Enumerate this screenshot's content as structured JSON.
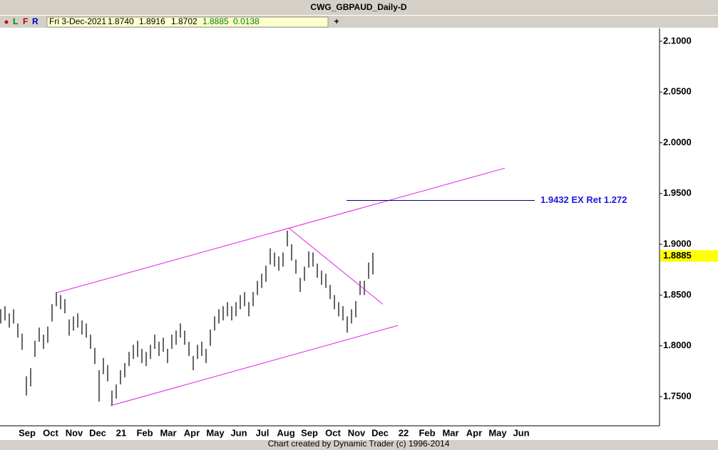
{
  "toolbar": [
    "L",
    "F",
    "R"
  ],
  "info": [
    "Fri 3-Dec-2021",
    "1.8740",
    "1.8916",
    "1.8702",
    "1.8885",
    "0.0138"
  ],
  "footer": "Chart created by Dynamic Trader  (c) 1996-2014",
  "chart_data": {
    "type": "range_bar",
    "title": "CWG_GBPAUD_Daily-D",
    "color": "#000000",
    "high": [
      1.836,
      1.839,
      1.832,
      1.836,
      1.822,
      1.812,
      1.77,
      1.778,
      1.805,
      1.818,
      1.811,
      1.819,
      1.841,
      1.853,
      1.85,
      1.846,
      1.826,
      1.829,
      1.832,
      1.825,
      1.822,
      1.811,
      1.798,
      1.776,
      1.788,
      1.781,
      1.756,
      1.762,
      1.776,
      1.783,
      1.794,
      1.801,
      1.805,
      1.797,
      1.794,
      1.801,
      1.811,
      1.804,
      1.808,
      1.797,
      1.811,
      1.815,
      1.822,
      1.815,
      1.804,
      1.79,
      1.801,
      1.804,
      1.797,
      1.816,
      1.829,
      1.836,
      1.839,
      1.843,
      1.839,
      1.843,
      1.85,
      1.853,
      1.843,
      1.853,
      1.864,
      1.871,
      1.879,
      1.896,
      1.892,
      1.888,
      1.892,
      1.9135,
      1.9,
      1.885,
      1.867,
      1.878,
      1.893,
      1.892,
      1.881,
      1.874,
      1.871,
      1.86,
      1.85,
      1.843,
      1.839,
      1.829,
      1.836,
      1.844,
      1.864,
      1.864,
      1.882,
      1.8916
    ],
    "low": [
      1.822,
      1.825,
      1.818,
      1.822,
      1.808,
      1.796,
      1.751,
      1.76,
      1.789,
      1.804,
      1.797,
      1.803,
      1.824,
      1.839,
      1.836,
      1.832,
      1.81,
      1.815,
      1.818,
      1.811,
      1.808,
      1.797,
      1.782,
      1.745,
      1.772,
      1.765,
      1.741,
      1.748,
      1.762,
      1.769,
      1.78,
      1.787,
      1.789,
      1.783,
      1.78,
      1.787,
      1.797,
      1.79,
      1.794,
      1.783,
      1.797,
      1.801,
      1.808,
      1.801,
      1.79,
      1.776,
      1.787,
      1.79,
      1.783,
      1.8,
      1.815,
      1.822,
      1.825,
      1.829,
      1.825,
      1.829,
      1.836,
      1.839,
      1.829,
      1.839,
      1.85,
      1.857,
      1.863,
      1.88,
      1.878,
      1.874,
      1.878,
      1.898,
      1.884,
      1.871,
      1.853,
      1.864,
      1.877,
      1.878,
      1.867,
      1.86,
      1.857,
      1.846,
      1.836,
      1.829,
      1.825,
      1.813,
      1.822,
      1.828,
      1.85,
      1.85,
      1.866,
      1.8702
    ],
    "months": [
      "Sep",
      "Oct",
      "Nov",
      "Dec",
      "21",
      "Feb",
      "Mar",
      "Apr",
      "May",
      "Jun",
      "Jul",
      "Aug",
      "Sep",
      "Oct",
      "Nov",
      "Dec",
      "22",
      "Feb",
      "Mar",
      "Apr",
      "May",
      "Jun"
    ],
    "ylim": [
      1.7212,
      2.1126
    ],
    "yticks": [
      {
        "value": 1.75,
        "label": "1.7500"
      },
      {
        "value": 1.8,
        "label": "1.8000"
      },
      {
        "value": 1.85,
        "label": "1.8500"
      },
      {
        "value": 1.9,
        "label": "1.9000"
      },
      {
        "value": 1.95,
        "label": "1.9500"
      },
      {
        "value": 2.0,
        "label": "2.0000"
      },
      {
        "value": 2.05,
        "label": "2.0500"
      },
      {
        "value": 2.1,
        "label": "2.1000"
      }
    ],
    "trendlines": [
      {
        "color": "#e020e0",
        "values": [
          1.852,
          1.975
        ]
      },
      {
        "color": "#e020e0",
        "values": [
          1.741,
          1.82
        ]
      },
      {
        "color": "#e020e0",
        "values": [
          1.916,
          1.841
        ]
      }
    ],
    "level": {
      "value": 1.9432,
      "label": "1.9432 EX Ret 1.272",
      "color": "#000080",
      "label_color": "#1a1adf"
    },
    "last_price": {
      "value": 1.8885,
      "color": "#ffff00"
    }
  }
}
